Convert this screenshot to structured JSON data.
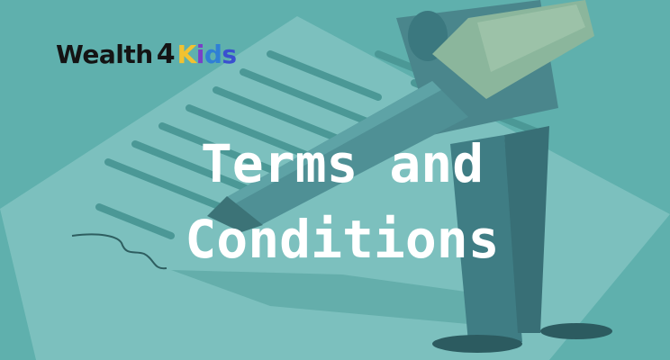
{
  "logo": {
    "wealth": "Wealth",
    "four": "4",
    "kids_letters": [
      "K",
      "i",
      "d",
      "s"
    ]
  },
  "hero": {
    "title_line1": "Terms and",
    "title_line2": "Conditions"
  },
  "colors": {
    "background": "#5fb0ad",
    "document": "#7dc1bf",
    "pen_body": "#4e8f93",
    "person": "#3f7d84",
    "scroll": "#8eb79f",
    "title": "#ffffff"
  }
}
